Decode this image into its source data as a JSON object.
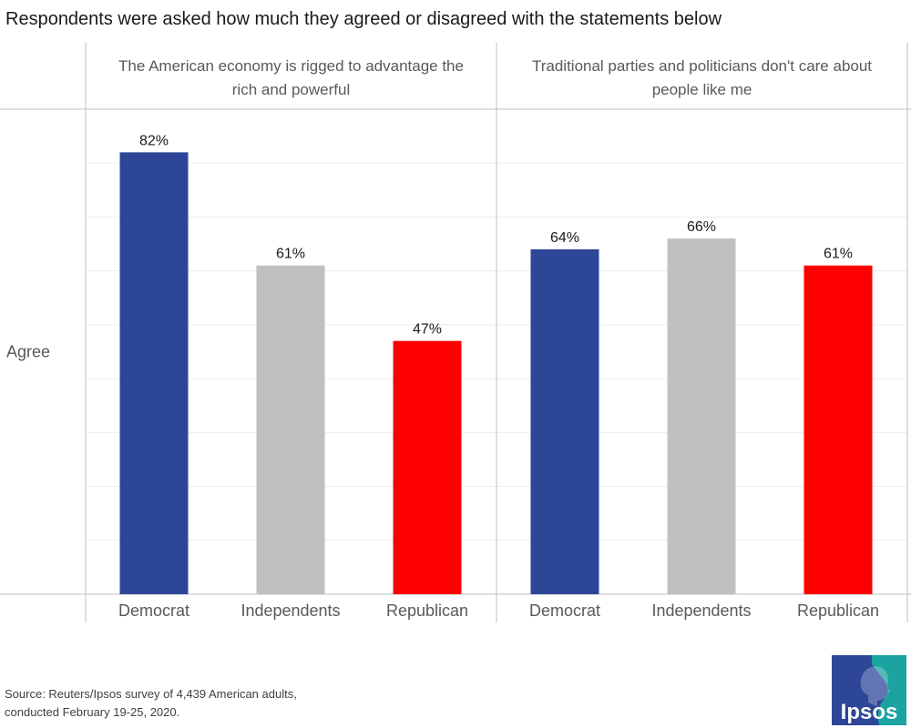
{
  "title": "Respondents were asked how much they agreed or disagreed with the statements below",
  "row_label": "Agree",
  "source": {
    "line1": "Source: Reuters/Ipsos survey of 4,439 American adults,",
    "line2": "conducted February 19-25, 2020."
  },
  "logo_text": "Ipsos",
  "colors": {
    "Democrat": "#2E4698",
    "Independents": "#C0C0C0",
    "Republican": "#FF0000",
    "grid": "#EDEDED",
    "border": "#BFBFBF",
    "logo_blue": "#2E4698",
    "logo_teal": "#1AA3A0"
  },
  "chart_data": {
    "type": "bar",
    "ylim": [
      0,
      90
    ],
    "grid": true,
    "row": "Agree",
    "panels": [
      {
        "title": "The American economy is rigged to advantage the rich and powerful",
        "title_lines": [
          "The American economy is rigged to advantage the",
          "rich and powerful"
        ],
        "categories": [
          "Democrat",
          "Independents",
          "Republican"
        ],
        "values": [
          82,
          61,
          47
        ],
        "labels": [
          "82%",
          "61%",
          "47%"
        ]
      },
      {
        "title": "Traditional parties and politicians don't care about people like me",
        "title_lines": [
          "Traditional parties and politicians don't care about",
          "people like me"
        ],
        "categories": [
          "Democrat",
          "Independents",
          "Republican"
        ],
        "values": [
          64,
          66,
          61
        ],
        "labels": [
          "64%",
          "66%",
          "61%"
        ]
      }
    ]
  }
}
